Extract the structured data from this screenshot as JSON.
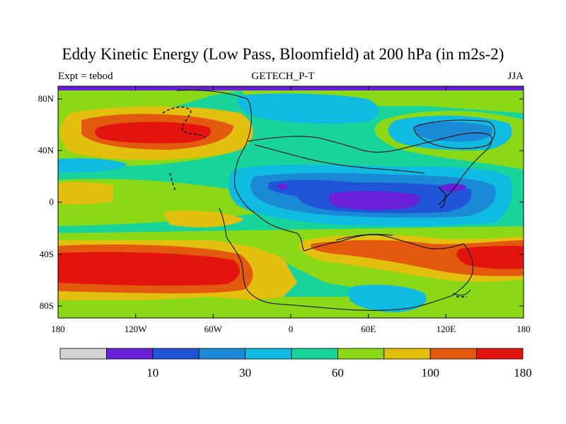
{
  "title": "Eddy Kinetic Energy (Low Pass, Bloomfield) at 200 hPa (in m2s-2)",
  "subtitle_left": "Expt = tebod",
  "subtitle_center": "GETECH_P-T",
  "subtitle_right": "JJA",
  "lat_ticks": [
    "80N",
    "40N",
    "0",
    "40S",
    "80S"
  ],
  "lon_ticks": [
    "180",
    "120W",
    "60W",
    "0",
    "60E",
    "120E",
    "180"
  ],
  "colorbar": {
    "colors": [
      "#d3d3d3",
      "#6a1fd8",
      "#1f55d6",
      "#1b8ad6",
      "#0fbbe0",
      "#18d49a",
      "#8bd817",
      "#e3bf0e",
      "#e35a0e",
      "#e3140e"
    ],
    "labels": [
      "10",
      "30",
      "60",
      "100",
      "180"
    ]
  }
}
